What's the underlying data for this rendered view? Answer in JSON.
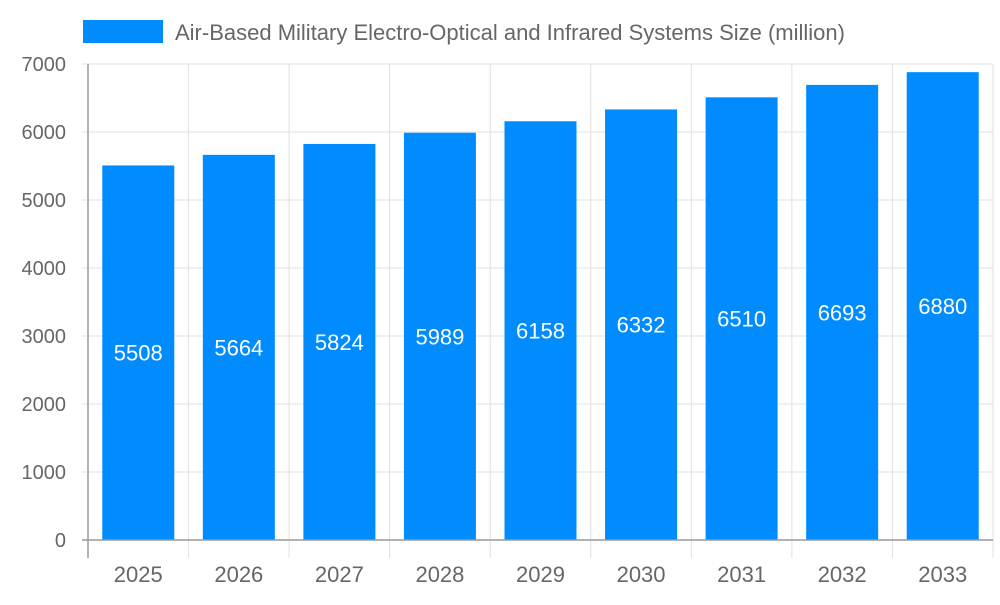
{
  "chart_data": {
    "type": "bar",
    "title": "",
    "xlabel": "",
    "ylabel": "",
    "categories": [
      "2025",
      "2026",
      "2027",
      "2028",
      "2029",
      "2030",
      "2031",
      "2032",
      "2033"
    ],
    "series": [
      {
        "name": "Air-Based Military Electro-Optical and Infrared Systems Size (million)",
        "values": [
          5508,
          5664,
          5824,
          5989,
          6158,
          6332,
          6510,
          6693,
          6880
        ]
      }
    ],
    "ylim": [
      0,
      7000
    ],
    "yticks": [
      "0",
      "1000",
      "2000",
      "3000",
      "4000",
      "5000",
      "6000",
      "7000"
    ],
    "grid": true,
    "legend": "top",
    "colors": {
      "bar": "#008cff",
      "label": "#ffffff",
      "axis_text": "#666666",
      "grid": "#e0e0e0"
    }
  }
}
